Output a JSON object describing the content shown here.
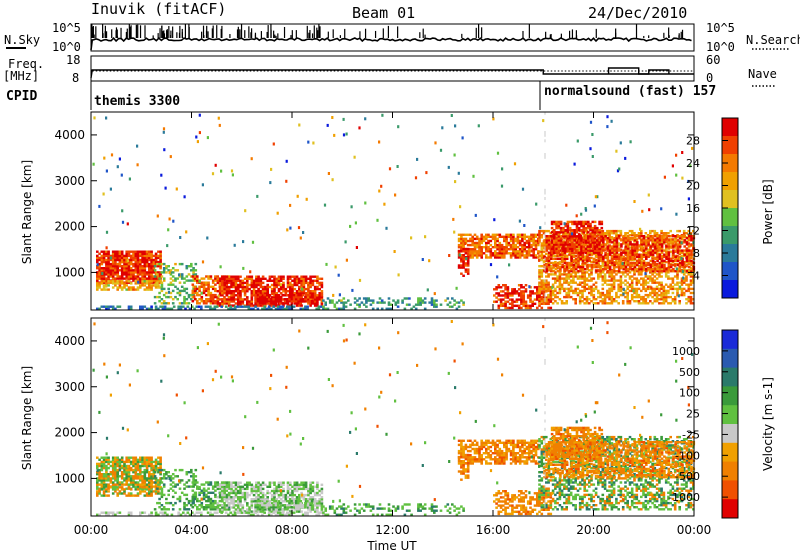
{
  "header": {
    "station": "Inuvik (fitACF)",
    "beam": "Beam 01",
    "date": "24/Dec/2010"
  },
  "left_labels": {
    "nsky": "N.Sky",
    "freq": "Freq.",
    "freq_unit": "[MHz]",
    "cpid": "CPID"
  },
  "right_labels": {
    "nsearch": "N.Search",
    "nave": "Nave"
  },
  "strip_ticks": {
    "noise_left": [
      "10^5",
      "10^0"
    ],
    "noise_right": [
      "10^5",
      "10^0"
    ],
    "freq_left": [
      "18",
      "8"
    ],
    "freq_right": [
      "60",
      "0"
    ]
  },
  "cpid": {
    "segments": [
      {
        "label": "themis 3300",
        "start_hour": 0,
        "end_hour": 18
      },
      {
        "label": "normalsound (fast) 157",
        "start_hour": 18,
        "end_hour": 24
      }
    ]
  },
  "chart_data": [
    {
      "type": "heatmap",
      "name": "power",
      "ylabel": "Slant Range [km]",
      "xlabel": "",
      "xlim": [
        0,
        24
      ],
      "ylim": [
        180,
        4500
      ],
      "y_ticks": [
        "1000",
        "2000",
        "3000",
        "4000"
      ],
      "colorbar": {
        "label": "Power [dB]",
        "ticks": [
          "4",
          "8",
          "12",
          "16",
          "20",
          "24",
          "28"
        ],
        "colors": [
          "#0a1adc",
          "#1f55c8",
          "#2a7a9a",
          "#3a9a6a",
          "#60c040",
          "#e0c020",
          "#f0a000",
          "#f47a00",
          "#f04000",
          "#e00000"
        ]
      }
    },
    {
      "type": "heatmap",
      "name": "velocity",
      "ylabel": "Slant Range [km]",
      "xlabel": "Time UT",
      "xlim": [
        0,
        24
      ],
      "ylim": [
        180,
        4500
      ],
      "y_ticks": [
        "1000",
        "2000",
        "3000",
        "4000"
      ],
      "x_ticks": [
        "00:00",
        "04:00",
        "08:00",
        "12:00",
        "16:00",
        "20:00",
        "00:00"
      ],
      "colorbar": {
        "label": "Velocity [m s-1]",
        "ticks": [
          "1000",
          "500",
          "100",
          "25",
          "-25",
          "-100",
          "-500",
          "-1000"
        ],
        "colors": [
          "#1a2ad8",
          "#2a5ab0",
          "#2a7a6a",
          "#3a9a3a",
          "#60c040",
          "#c8c8c8",
          "#f0a000",
          "#f08000",
          "#f05000",
          "#e00000"
        ]
      }
    }
  ]
}
